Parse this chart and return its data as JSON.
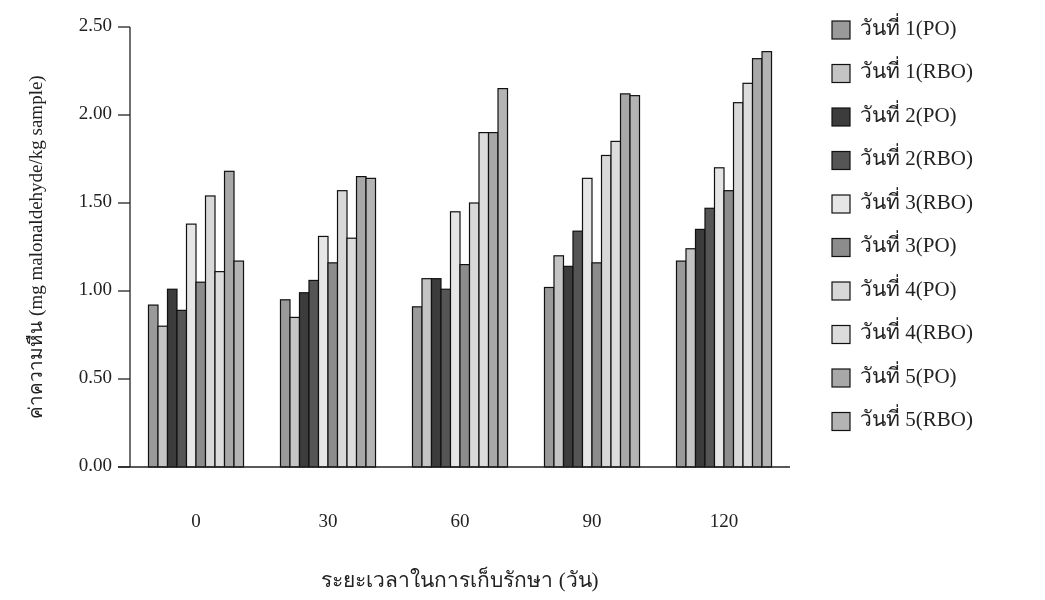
{
  "chart_data": {
    "type": "bar",
    "xlabel": "ระยะเวลาในการเก็บรักษา (วัน)",
    "ylabel": "ค่าความหืน (mg malonaldehyde/kg sample)",
    "categories": [
      "0",
      "30",
      "60",
      "90",
      "120"
    ],
    "ylim": [
      0,
      2.5
    ],
    "yticks": [
      {
        "value": 0,
        "label": "0.00"
      },
      {
        "value": 0.5,
        "label": "0.50"
      },
      {
        "value": 1,
        "label": "1.00"
      },
      {
        "value": 1.5,
        "label": "1.50"
      },
      {
        "value": 2,
        "label": "2.00"
      },
      {
        "value": 2.5,
        "label": "2.50"
      }
    ],
    "grid": false,
    "legend": "right",
    "series": [
      {
        "name": "วันที่ 1(PO)",
        "color": "#9a9a9a",
        "values": [
          0.92,
          0.95,
          0.91,
          1.02,
          1.17
        ]
      },
      {
        "name": "วันที่ 1(RBO)",
        "color": "#c4c4c4",
        "values": [
          0.8,
          0.85,
          1.07,
          1.2,
          1.24
        ]
      },
      {
        "name": "วันที่ 2(PO)",
        "color": "#3c3c3c",
        "values": [
          1.01,
          0.99,
          1.07,
          1.14,
          1.35
        ]
      },
      {
        "name": "วันที่ 2(RBO)",
        "color": "#555555",
        "values": [
          0.89,
          1.06,
          1.01,
          1.34,
          1.47
        ]
      },
      {
        "name": "วันที่ 3(RBO)",
        "color": "#e6e6e6",
        "values": [
          1.38,
          1.31,
          1.45,
          1.64,
          1.7
        ]
      },
      {
        "name": "วันที่ 3(PO)",
        "color": "#8c8c8c",
        "values": [
          1.05,
          1.16,
          1.15,
          1.16,
          1.57
        ]
      },
      {
        "name": "วันที่ 4(PO)",
        "color": "#d8d8d8",
        "values": [
          1.54,
          1.57,
          1.5,
          1.77,
          2.07
        ]
      },
      {
        "name": "วันที่ 4(RBO)",
        "color": "#dcdcdc",
        "values": [
          1.11,
          1.3,
          1.9,
          1.85,
          2.18
        ]
      },
      {
        "name": "วันที่ 5(PO)",
        "color": "#a8a8a8",
        "values": [
          1.68,
          1.65,
          1.9,
          2.12,
          2.32
        ]
      },
      {
        "name": "วันที่ 5(RBO)",
        "color": "#b4b4b4",
        "values": [
          1.17,
          1.64,
          2.15,
          2.11,
          2.36
        ]
      }
    ]
  }
}
